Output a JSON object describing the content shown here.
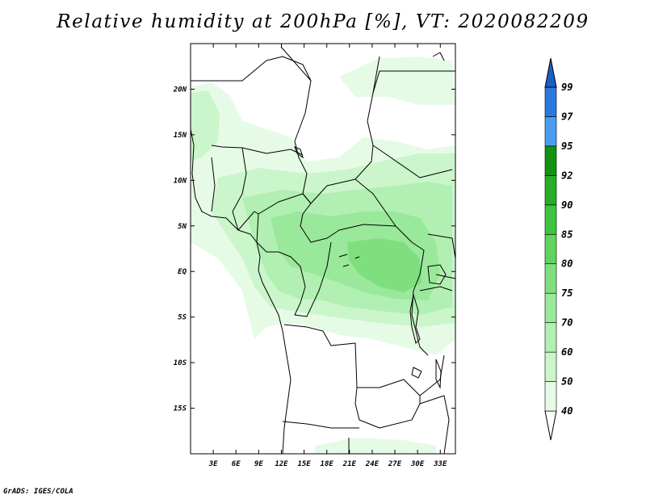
{
  "title": "Relative humidity at 200hPa [%], VT: 2020082209",
  "credit": "GrADS: IGES/COLA",
  "map": {
    "lon_range": [
      0,
      35
    ],
    "lat_range": [
      -20,
      25
    ],
    "x_ticks": [
      "3E",
      "6E",
      "9E",
      "12E",
      "15E",
      "18E",
      "21E",
      "24E",
      "27E",
      "30E",
      "33E"
    ],
    "y_ticks": [
      "20N",
      "15N",
      "10N",
      "5N",
      "EQ",
      "5S",
      "10S",
      "15S"
    ]
  },
  "colorbar": {
    "labels": [
      "40",
      "50",
      "60",
      "70",
      "75",
      "80",
      "85",
      "90",
      "92",
      "95",
      "97",
      "99"
    ],
    "colors": {
      "c40_50": "#e6fbe6",
      "c50_60": "#cbf5cb",
      "c60_70": "#b2efb2",
      "c70_75": "#9ae89a",
      "c75_80": "#7fdf7f",
      "c80_85": "#5fd45f",
      "c85_90": "#3fc43f",
      "c90_92": "#26ae26",
      "c92_95": "#129412",
      "c95_97": "#4a9cf0",
      "c97_99": "#2a78e0",
      "c99_up": "#1860c8"
    }
  }
}
